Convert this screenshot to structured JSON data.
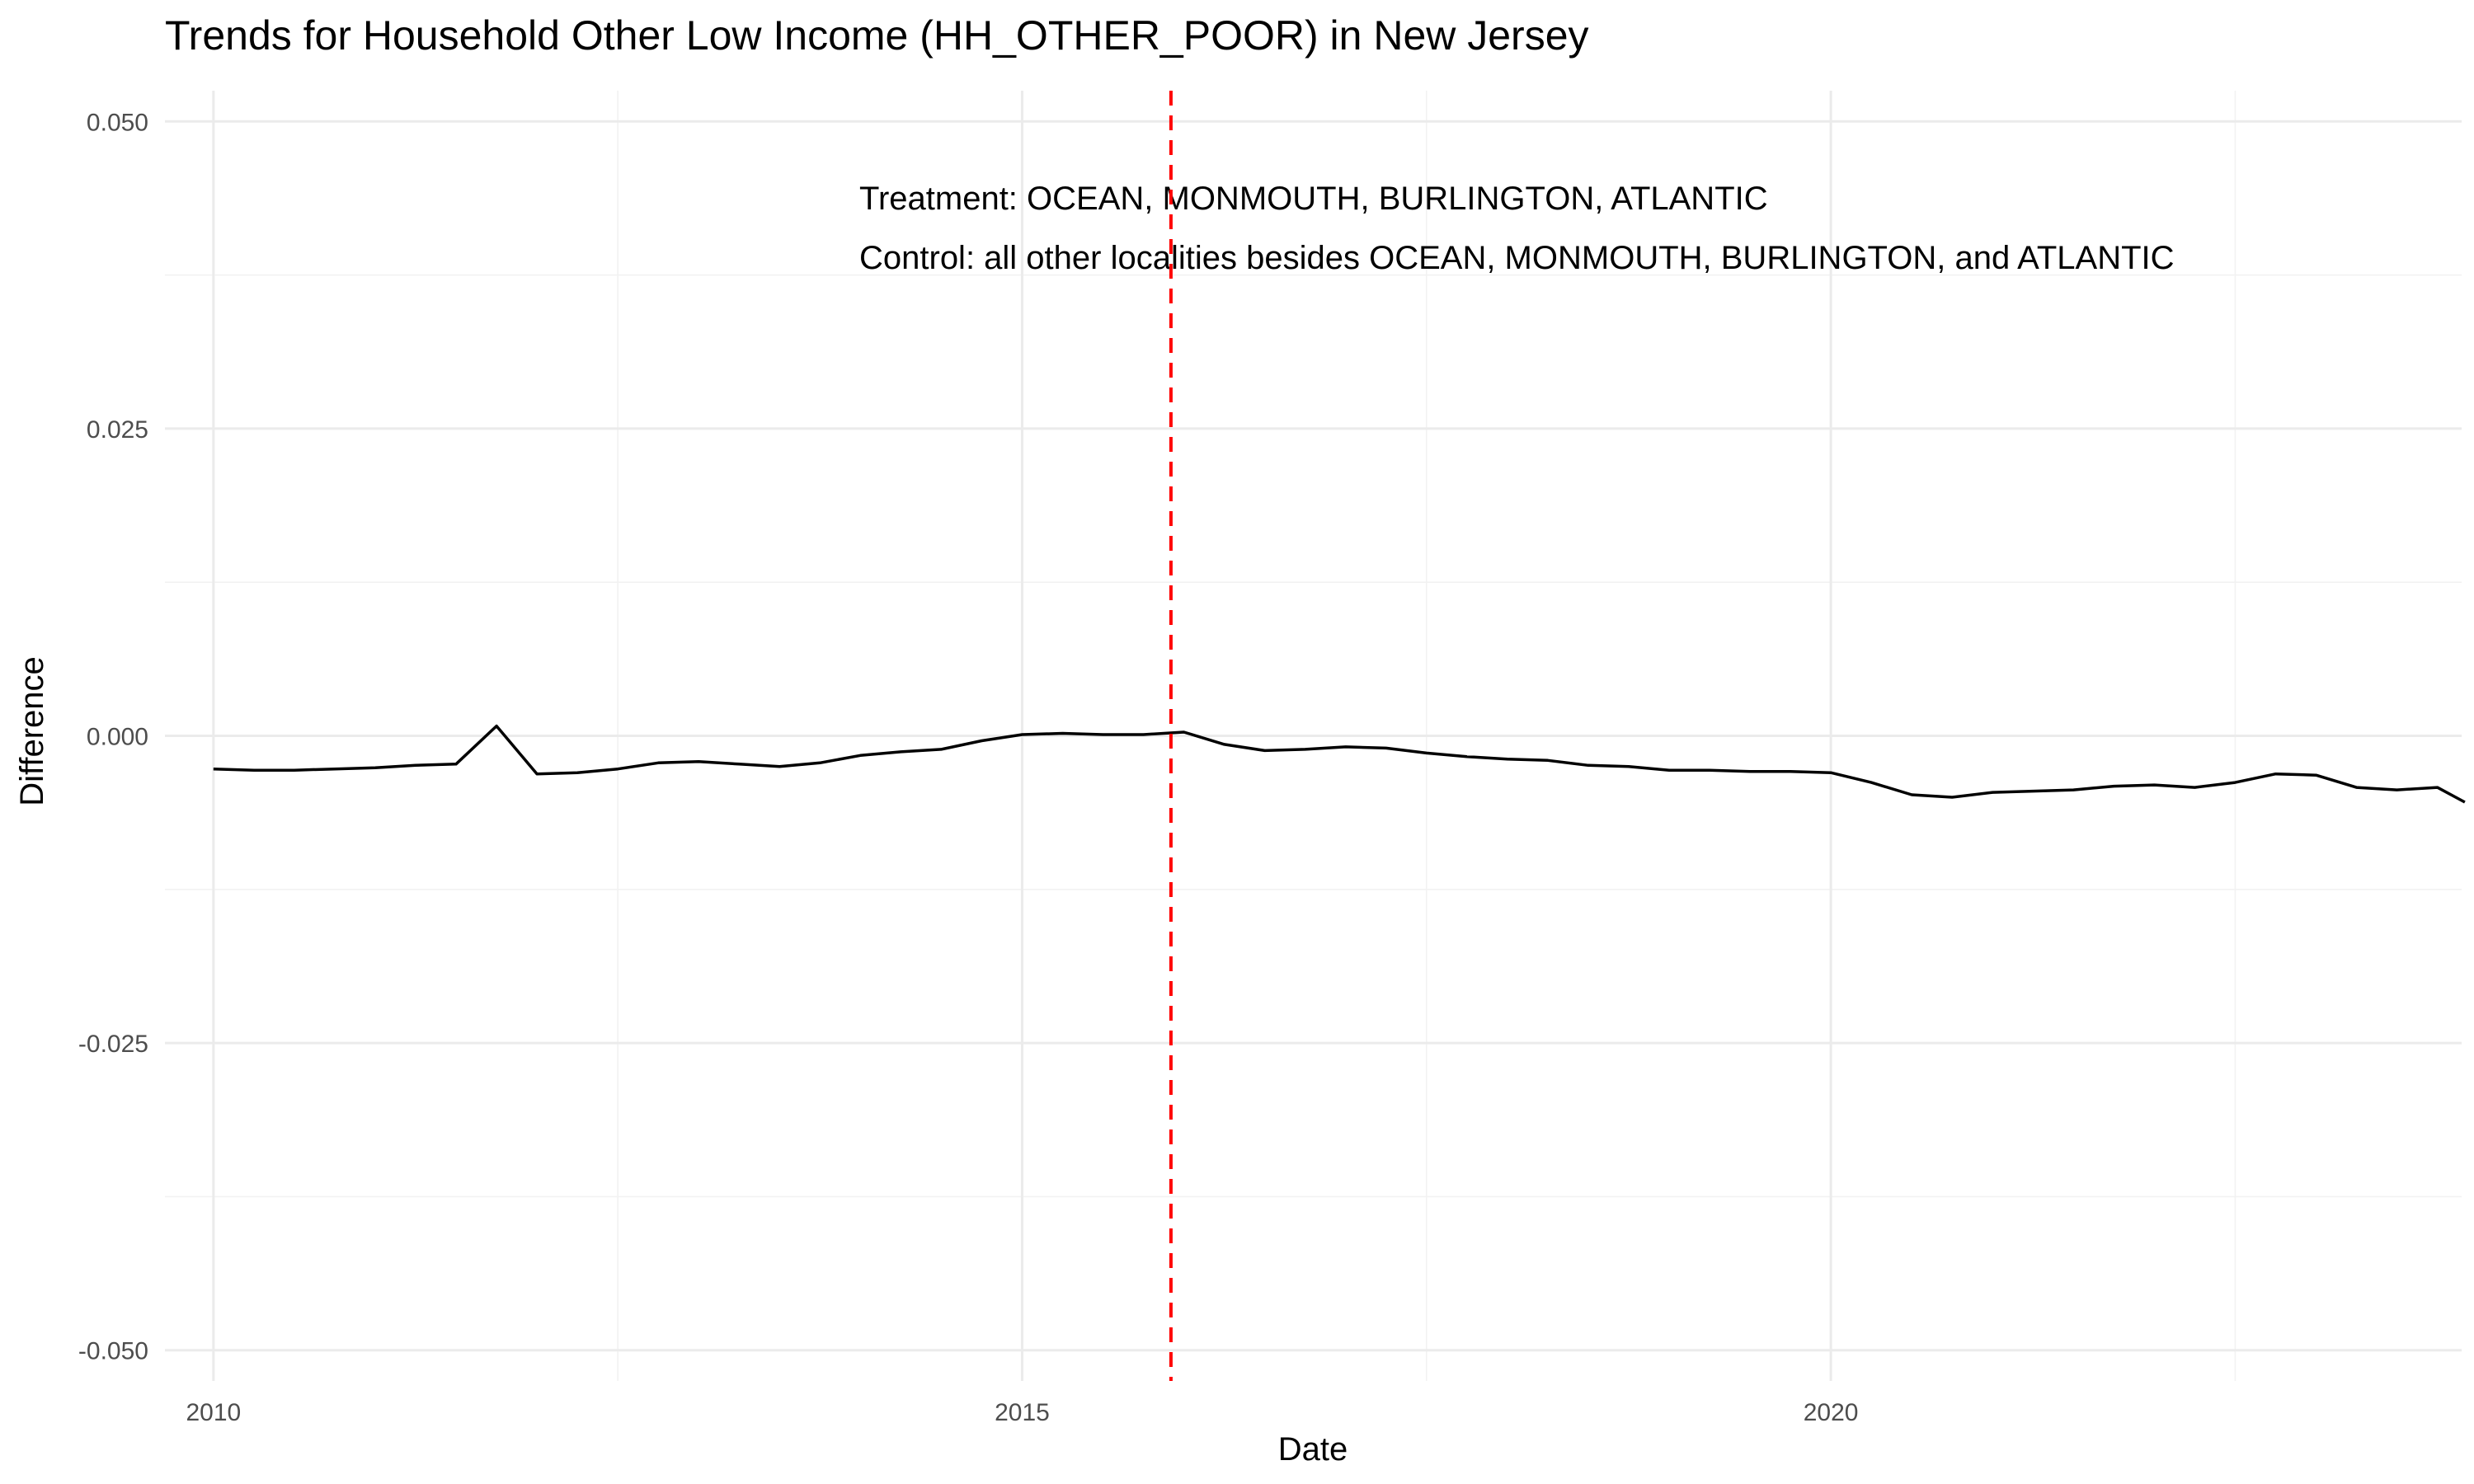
{
  "chart_data": {
    "type": "line",
    "title": "Trends for Household Other Low Income (HH_OTHER_POOR) in New Jersey",
    "xlabel": "Date",
    "ylabel": "Difference",
    "xlim": [
      2009.7,
      2023.9
    ],
    "ylim": [
      -0.0525,
      0.0525
    ],
    "x_ticks": [
      2010,
      2015,
      2020
    ],
    "x_tick_labels": [
      "2010",
      "2015",
      "2020"
    ],
    "x_minor_ticks": [
      2012.5,
      2017.5,
      2022.5
    ],
    "y_ticks": [
      -0.05,
      -0.025,
      0.0,
      0.025,
      0.05
    ],
    "y_tick_labels": [
      "-0.050",
      "-0.025",
      "0.000",
      "0.025",
      "0.050"
    ],
    "y_minor_ticks": [
      -0.0375,
      -0.0125,
      0.0125,
      0.0375
    ],
    "grid": true,
    "legend": "none",
    "line_color": "#000000",
    "vline": {
      "x": 2015.92,
      "color": "#ff0000",
      "style": "dashed"
    },
    "annotations": [
      "Treatment: OCEAN, MONMOUTH, BURLINGTON, ATLANTIC",
      "Control: all other localities besides OCEAN, MONMOUTH, BURLINGTON, and ATLANTIC"
    ],
    "series": [
      {
        "x": [
          2010.0,
          2010.25,
          2010.5,
          2010.75,
          2011.0,
          2011.25,
          2011.5,
          2011.75,
          2012.0,
          2012.25,
          2012.5,
          2012.75,
          2013.0,
          2013.25,
          2013.5,
          2013.75,
          2014.0,
          2014.25,
          2014.5,
          2014.75,
          2015.0,
          2015.25,
          2015.5,
          2015.75,
          2016.0,
          2016.25,
          2016.5,
          2016.75,
          2017.0,
          2017.25,
          2017.5,
          2017.75,
          2018.0,
          2018.25,
          2018.5,
          2018.75,
          2019.0,
          2019.25,
          2019.5,
          2019.75,
          2020.0,
          2020.25,
          2020.5,
          2020.75,
          2021.0,
          2021.25,
          2021.5,
          2021.75,
          2022.0,
          2022.25,
          2022.5,
          2022.75,
          2023.0,
          2023.25,
          2023.5,
          2023.75,
          2023.92
        ],
        "y": [
          -0.0027,
          -0.0028,
          -0.0028,
          -0.0027,
          -0.0026,
          -0.0024,
          -0.0023,
          0.0008,
          -0.0031,
          -0.003,
          -0.0027,
          -0.0022,
          -0.0021,
          -0.0023,
          -0.0025,
          -0.0022,
          -0.0016,
          -0.0013,
          -0.0011,
          -0.0004,
          0.0001,
          0.0002,
          0.0001,
          0.0001,
          0.0003,
          -0.0007,
          -0.0012,
          -0.0011,
          -0.0009,
          -0.001,
          -0.0014,
          -0.0017,
          -0.0019,
          -0.002,
          -0.0024,
          -0.0025,
          -0.0028,
          -0.0028,
          -0.0029,
          -0.0029,
          -0.003,
          -0.0038,
          -0.0048,
          -0.005,
          -0.0046,
          -0.0045,
          -0.0044,
          -0.0041,
          -0.004,
          -0.0042,
          -0.0038,
          -0.0031,
          -0.0032,
          -0.0042,
          -0.0044,
          -0.0042,
          -0.0054
        ]
      }
    ]
  }
}
